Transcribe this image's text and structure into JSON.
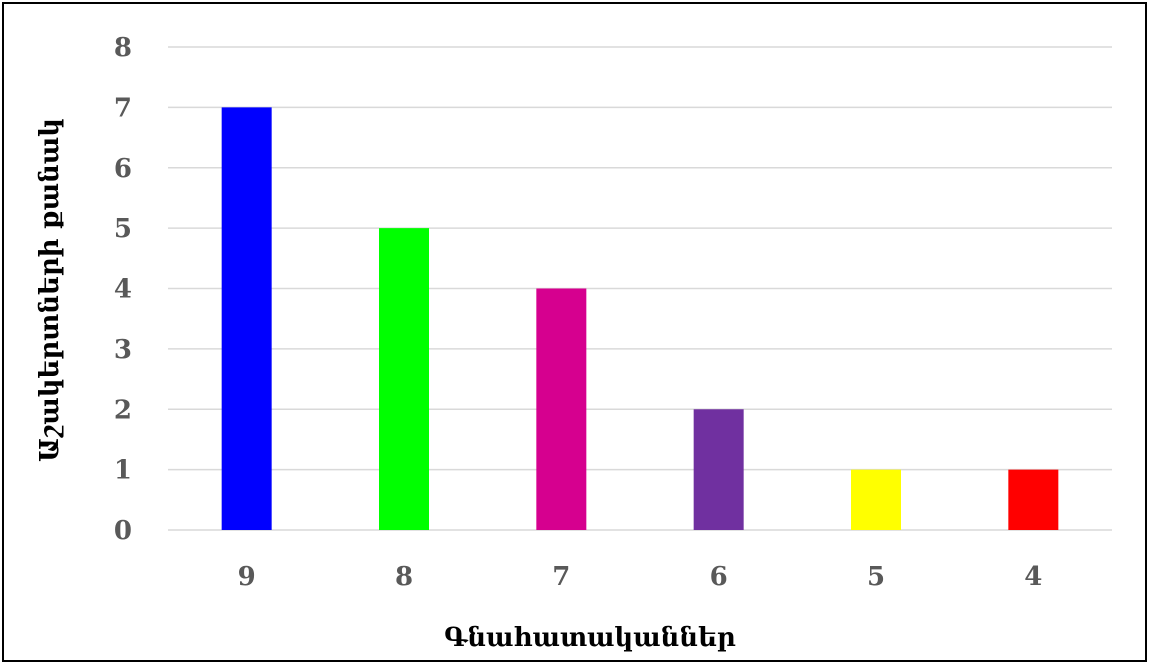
{
  "chart_data": {
    "type": "bar",
    "categories": [
      "9",
      "8",
      "7",
      "6",
      "5",
      "4"
    ],
    "values": [
      7,
      5,
      4,
      2,
      1,
      1
    ],
    "colors": [
      "#0000FF",
      "#00FF00",
      "#D6008F",
      "#7030A0",
      "#FFFF00",
      "#FF0000"
    ],
    "xlabel": "Գնահատականներ",
    "ylabel": "Աշակերտների քանակ",
    "ylim": [
      0,
      8
    ],
    "yticks": [
      "0",
      "1",
      "2",
      "3",
      "4",
      "5",
      "6",
      "7",
      "8"
    ],
    "grid": true,
    "gridColor": "#D9D9D9"
  }
}
